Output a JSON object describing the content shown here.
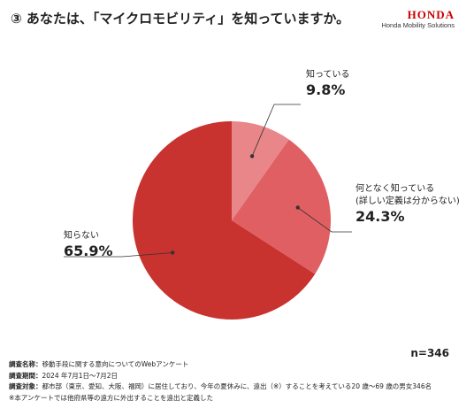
{
  "header": {
    "title": "③ あなたは、「マイクロモビリティ」を知っていますか。",
    "logo_main": "HONDA",
    "logo_sub": "Honda Mobility Solutions"
  },
  "chart_data": {
    "type": "pie",
    "start": "top, clockwise",
    "slices": [
      {
        "label": "知っている",
        "sublabel": "",
        "value": 9.8,
        "value_label": "9.8%",
        "color": "#e8868a"
      },
      {
        "label": "何となく知っている",
        "sublabel": "(詳しい定義は分からない)",
        "value": 24.3,
        "value_label": "24.3%",
        "color": "#e05f62"
      },
      {
        "label": "知らない",
        "sublabel": "",
        "value": 65.9,
        "value_label": "65.9%",
        "color": "#c8322f"
      }
    ]
  },
  "sample": "n=346",
  "notes": [
    {
      "key": "調査名称：",
      "text": "移動手段に関する意向についてのWebアンケート"
    },
    {
      "key": "調査期間：",
      "text": "2024 年7月1日〜7月2日"
    },
    {
      "key": "調査対象：",
      "text": "都市部（東京、愛知、大阪、福岡）に居住しており、今年の夏休みに、遠出（※）することを考えている20 歳〜69 歳の男女346名"
    },
    {
      "key": "",
      "text": "※本アンケートでは他府県等の遠方に外出することを遠出と定義した"
    }
  ]
}
